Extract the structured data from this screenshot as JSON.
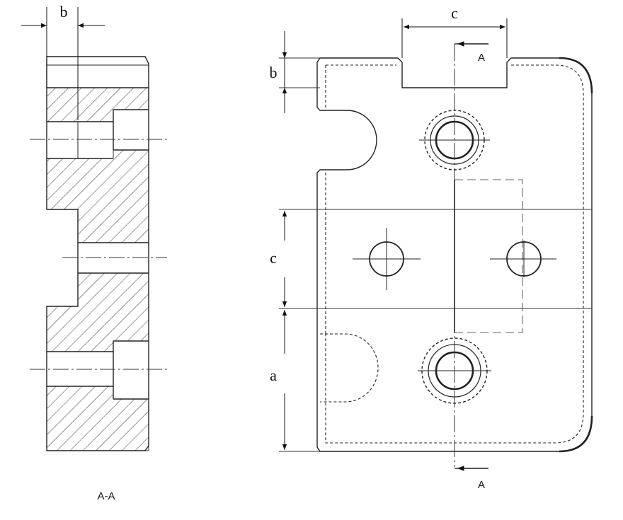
{
  "section_view": {
    "caption": "A-A",
    "dim_b_label": "b"
  },
  "front_view": {
    "dim_c_top_label": "c",
    "dim_b_label": "b",
    "dim_c_side_label": "c",
    "dim_a_label": "a",
    "section_marker_top": "A",
    "section_marker_bottom": "A"
  }
}
